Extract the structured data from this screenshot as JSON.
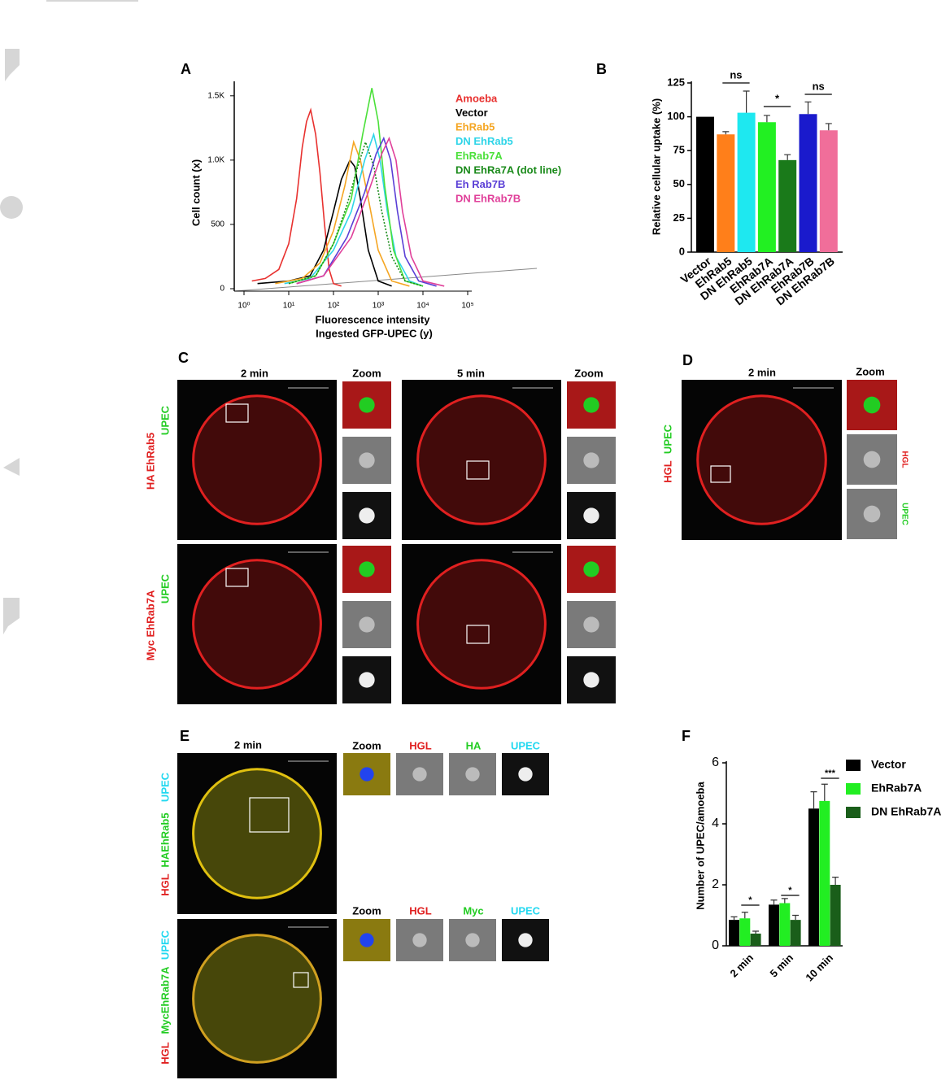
{
  "chart_data": [
    {
      "type": "line",
      "panel": "A",
      "xlabel": [
        "Fluorescence intensity",
        "Ingested GFP-UPEC (y)"
      ],
      "ylabel": "Cell count (x)",
      "log_x": true,
      "xlim": [
        1,
        100000
      ],
      "xticks": [
        {
          "value": 1,
          "label": "10⁰"
        },
        {
          "value": 10,
          "label": "10¹"
        },
        {
          "value": 100,
          "label": "10²"
        },
        {
          "value": 1000,
          "label": "10³"
        },
        {
          "value": 10000,
          "label": "10⁴"
        },
        {
          "value": 100000,
          "label": "10⁵"
        }
      ],
      "ylim": [
        0,
        1600
      ],
      "yticks": [
        0,
        500,
        {
          "value": 1000,
          "label": "1.0K"
        },
        {
          "value": 1500,
          "label": "1.5K"
        }
      ],
      "series": [
        {
          "name": "Amoeba",
          "color": "#e8312f",
          "x": [
            1.5,
            3,
            6,
            10,
            15,
            20,
            25,
            31,
            40,
            50,
            63,
            80,
            100,
            150
          ],
          "values": [
            60,
            80,
            150,
            350,
            700,
            1100,
            1300,
            1390,
            1200,
            900,
            500,
            150,
            40,
            20
          ]
        },
        {
          "name": "Vector",
          "color": "#000000",
          "x": [
            2,
            10,
            30,
            60,
            100,
            150,
            234,
            300,
            400,
            600,
            1000,
            2000
          ],
          "values": [
            40,
            60,
            100,
            300,
            600,
            850,
            1000,
            950,
            700,
            300,
            60,
            20
          ]
        },
        {
          "name": "EhRab5",
          "color": "#f5a623",
          "x": [
            5,
            20,
            50,
            100,
            180,
            282,
            400,
            600,
            1000,
            2000,
            5000
          ],
          "values": [
            40,
            80,
            200,
            450,
            800,
            1140,
            1000,
            700,
            300,
            60,
            20
          ]
        },
        {
          "name": "DN EhRab5",
          "color": "#2fd5e8",
          "x": [
            8,
            30,
            100,
            250,
            500,
            790,
            1100,
            1600,
            2500,
            5000,
            10000
          ],
          "values": [
            40,
            80,
            300,
            600,
            1000,
            1200,
            1000,
            600,
            250,
            60,
            20
          ]
        },
        {
          "name": "EhRab7A",
          "color": "#4be03a",
          "x": [
            10,
            40,
            100,
            250,
            450,
            720,
            1000,
            1400,
            2200,
            4000,
            10000
          ],
          "values": [
            40,
            100,
            350,
            700,
            1200,
            1560,
            1300,
            800,
            300,
            60,
            20
          ]
        },
        {
          "name": "DN EhRa7A (dot line)",
          "color": "#1a8a1a",
          "style": "dotted",
          "x": [
            10,
            40,
            100,
            200,
            350,
            520,
            800,
            1200,
            2000,
            4000,
            10000
          ],
          "values": [
            40,
            100,
            350,
            650,
            950,
            1140,
            950,
            600,
            250,
            60,
            20
          ]
        },
        {
          "name": "Eh Rab7B",
          "color": "#5a3fd6",
          "x": [
            15,
            60,
            200,
            500,
            900,
            1330,
            1900,
            2700,
            4000,
            8000,
            20000
          ],
          "values": [
            40,
            100,
            400,
            750,
            1050,
            1170,
            1000,
            600,
            250,
            60,
            20
          ]
        },
        {
          "name": "DN EhRab7B",
          "color": "#e0409a",
          "x": [
            15,
            60,
            250,
            600,
            1200,
            1750,
            2500,
            3500,
            5500,
            10000,
            30000
          ],
          "values": [
            40,
            100,
            400,
            750,
            1050,
            1170,
            1000,
            600,
            250,
            60,
            20
          ]
        }
      ]
    },
    {
      "type": "bar",
      "panel": "B",
      "ylabel": "Relative cellular uptake (%)",
      "categories": [
        "Vector",
        "EhRab5",
        "DN EhRab5",
        "EhRab7A",
        "DN EhRab7A",
        "EhRab7B",
        "DN EhRab7B"
      ],
      "values": [
        100,
        87,
        103,
        96,
        68,
        102,
        90
      ],
      "errors": [
        0,
        2,
        16,
        5,
        4,
        9,
        5
      ],
      "colors": [
        "#000000",
        "#ff7f1a",
        "#1ee8f0",
        "#22f022",
        "#1a7a1a",
        "#1a1acc",
        "#f06e9a"
      ],
      "ylim": [
        0,
        125
      ],
      "yticks": [
        0,
        25,
        50,
        75,
        100,
        125
      ],
      "annotations": [
        "ns",
        "*",
        "ns"
      ]
    },
    {
      "type": "grouped-bar",
      "panel": "F",
      "ylabel": "Number of UPEC/amoeba",
      "categories": [
        "2 min",
        "5 min",
        "10 min"
      ],
      "series": [
        {
          "name": "Vector",
          "color": "#000000",
          "values": [
            0.85,
            1.35,
            4.5
          ],
          "errors": [
            0.1,
            0.15,
            0.55
          ]
        },
        {
          "name": "EhRab7A",
          "color": "#22ee22",
          "values": [
            0.9,
            1.4,
            4.75
          ],
          "errors": [
            0.2,
            0.15,
            0.55
          ]
        },
        {
          "name": "DN EhRab7A",
          "color": "#1a5e1a",
          "values": [
            0.4,
            0.85,
            2.0
          ],
          "errors": [
            0.08,
            0.15,
            0.25
          ]
        }
      ],
      "ylim": [
        0,
        6
      ],
      "yticks": [
        0,
        2,
        4,
        6
      ],
      "annotations": [
        "*",
        "*",
        "***"
      ]
    }
  ],
  "panel_c": {
    "label": "C",
    "columns": [
      "2 min",
      "Zoom",
      "5 min",
      "Zoom"
    ],
    "rows": [
      [
        "HA EhRab5",
        "UPEC"
      ],
      [
        "Myc EhRab7A",
        "UPEC"
      ]
    ]
  },
  "panel_d": {
    "label": "D",
    "columns": [
      "2 min",
      "Zoom"
    ],
    "row_label": [
      "HGL",
      "UPEC"
    ],
    "zoom_labels": [
      "HGL",
      "UPEC"
    ]
  },
  "panel_e": {
    "label": "E",
    "title": "2 min",
    "rows": [
      {
        "label": [
          "HGL",
          "HAEhRab5",
          "UPEC"
        ],
        "columns": [
          "Zoom",
          "HGL",
          "HA",
          "UPEC"
        ]
      },
      {
        "label": [
          "HGL",
          "MycEhRab7A",
          "UPEC"
        ],
        "columns": [
          "Zoom",
          "HGL",
          "Myc",
          "UPEC"
        ]
      }
    ]
  }
}
